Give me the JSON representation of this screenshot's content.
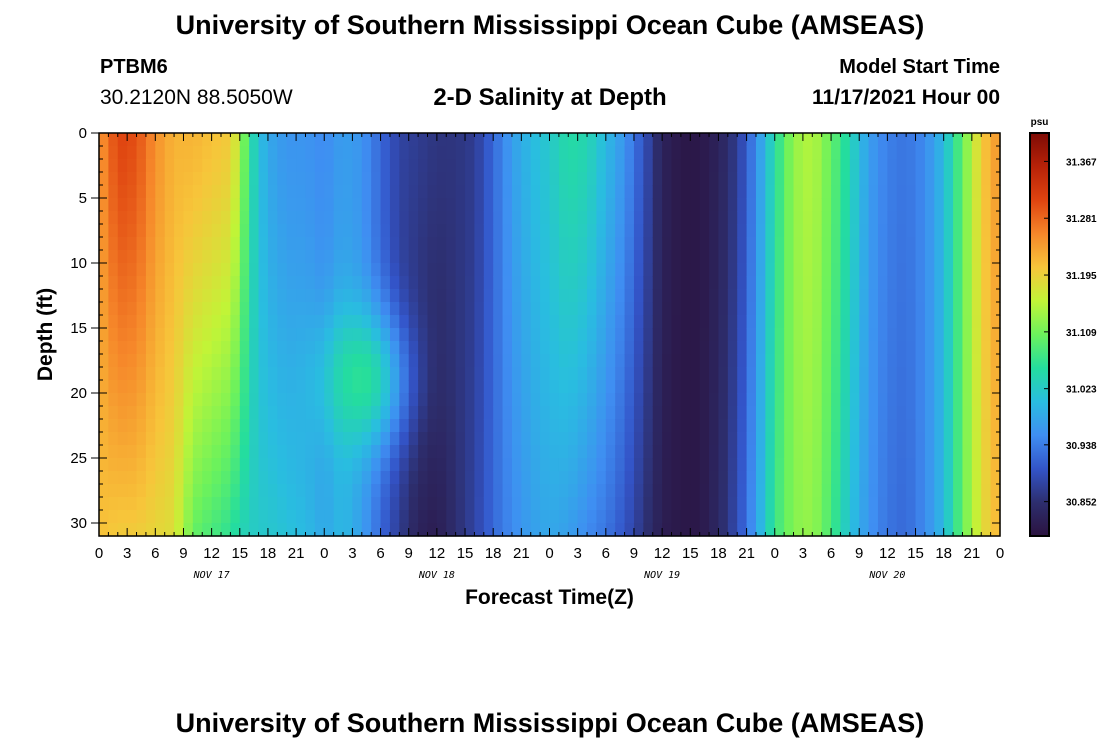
{
  "header": {
    "title": "University of Southern Mississippi Ocean Cube (AMSEAS)",
    "station": "PTBM6",
    "coords": "30.2120N  88.5050W",
    "chart_title": "2-D Salinity at Depth",
    "start_label": "Model Start Time",
    "start_value": "11/17/2021 Hour 00"
  },
  "footer": {
    "title": "University of Southern Mississippi Ocean Cube (AMSEAS)"
  },
  "colors": {
    "ramp": [
      "#2b1340",
      "#2d2e6e",
      "#3354c8",
      "#3f8ef2",
      "#29bde0",
      "#24dd9e",
      "#6cf25c",
      "#c1f437",
      "#f7c53a",
      "#f6872a",
      "#df4410",
      "#b72208",
      "#7e0b05"
    ]
  },
  "chart_data": {
    "type": "heatmap",
    "title": "2-D Salinity at Depth",
    "xlabel": "Forecast Time(Z)",
    "ylabel": "Depth (ft)",
    "x_range_hours": [
      0,
      96
    ],
    "y_range_ft": [
      0,
      31
    ],
    "x_ticks": [
      {
        "h": 0,
        "label": "0"
      },
      {
        "h": 3,
        "label": "3"
      },
      {
        "h": 6,
        "label": "6"
      },
      {
        "h": 9,
        "label": "9"
      },
      {
        "h": 12,
        "label": "12"
      },
      {
        "h": 15,
        "label": "15"
      },
      {
        "h": 18,
        "label": "18"
      },
      {
        "h": 21,
        "label": "21"
      },
      {
        "h": 24,
        "label": "0"
      },
      {
        "h": 27,
        "label": "3"
      },
      {
        "h": 30,
        "label": "6"
      },
      {
        "h": 33,
        "label": "9"
      },
      {
        "h": 36,
        "label": "12"
      },
      {
        "h": 39,
        "label": "15"
      },
      {
        "h": 42,
        "label": "18"
      },
      {
        "h": 45,
        "label": "21"
      },
      {
        "h": 48,
        "label": "0"
      },
      {
        "h": 51,
        "label": "3"
      },
      {
        "h": 54,
        "label": "6"
      },
      {
        "h": 57,
        "label": "9"
      },
      {
        "h": 60,
        "label": "12"
      },
      {
        "h": 63,
        "label": "15"
      },
      {
        "h": 66,
        "label": "18"
      },
      {
        "h": 69,
        "label": "21"
      },
      {
        "h": 72,
        "label": "0"
      },
      {
        "h": 75,
        "label": "3"
      },
      {
        "h": 78,
        "label": "6"
      },
      {
        "h": 81,
        "label": "9"
      },
      {
        "h": 84,
        "label": "12"
      },
      {
        "h": 87,
        "label": "15"
      },
      {
        "h": 90,
        "label": "18"
      },
      {
        "h": 93,
        "label": "21"
      },
      {
        "h": 96,
        "label": "0"
      }
    ],
    "day_labels": [
      {
        "h": 12,
        "label": "NOV 17"
      },
      {
        "h": 36,
        "label": "NOV 18"
      },
      {
        "h": 60,
        "label": "NOV 19"
      },
      {
        "h": 84,
        "label": "NOV 20"
      }
    ],
    "y_ticks": [
      0,
      5,
      10,
      15,
      20,
      25,
      30
    ],
    "colorbar": {
      "unit": "psu",
      "min": 30.8,
      "max": 31.41,
      "ticks": [
        30.852,
        30.938,
        31.023,
        31.109,
        31.195,
        31.281,
        31.367
      ]
    },
    "salinity_profile": {
      "hours": [
        0,
        2,
        4,
        6,
        8,
        10,
        12,
        14,
        15,
        16,
        17,
        18,
        20,
        22,
        24,
        26,
        28,
        30,
        32,
        34,
        36,
        38,
        40,
        42,
        44,
        46,
        48,
        50,
        52,
        54,
        56,
        58,
        60,
        62,
        64,
        66,
        68,
        70,
        72,
        74,
        76,
        78,
        80,
        82,
        84,
        86,
        88,
        90,
        92,
        94,
        96
      ],
      "surface_psu": [
        31.24,
        31.31,
        31.3,
        31.25,
        31.22,
        31.22,
        31.21,
        31.2,
        31.15,
        31.06,
        31.01,
        30.98,
        30.96,
        30.96,
        30.95,
        30.97,
        30.96,
        30.92,
        30.88,
        30.87,
        30.86,
        30.86,
        30.87,
        30.92,
        30.97,
        31.0,
        31.02,
        31.05,
        31.04,
        31.0,
        30.96,
        30.9,
        30.83,
        30.81,
        30.81,
        30.83,
        30.87,
        30.95,
        31.05,
        31.13,
        31.15,
        31.1,
        31.04,
        30.97,
        30.94,
        30.93,
        30.95,
        31.0,
        31.1,
        31.2,
        31.25
      ],
      "bottom_psu": [
        31.21,
        31.2,
        31.2,
        31.19,
        31.18,
        31.1,
        31.08,
        31.06,
        31.04,
        31.03,
        31.02,
        31.02,
        31.01,
        31.0,
        30.98,
        31.0,
        30.97,
        30.92,
        30.87,
        30.83,
        30.82,
        30.85,
        30.88,
        30.92,
        30.95,
        30.97,
        30.98,
        30.97,
        30.95,
        30.93,
        30.9,
        30.86,
        30.82,
        30.81,
        30.81,
        30.84,
        30.89,
        30.97,
        31.07,
        31.12,
        31.13,
        31.08,
        31.01,
        30.96,
        30.93,
        30.92,
        30.95,
        31.0,
        31.1,
        31.18,
        31.22
      ],
      "midwater_anomaly": {
        "center_hour": 28,
        "center_depth_ft": 19,
        "peak_psu": 31.07
      }
    }
  }
}
